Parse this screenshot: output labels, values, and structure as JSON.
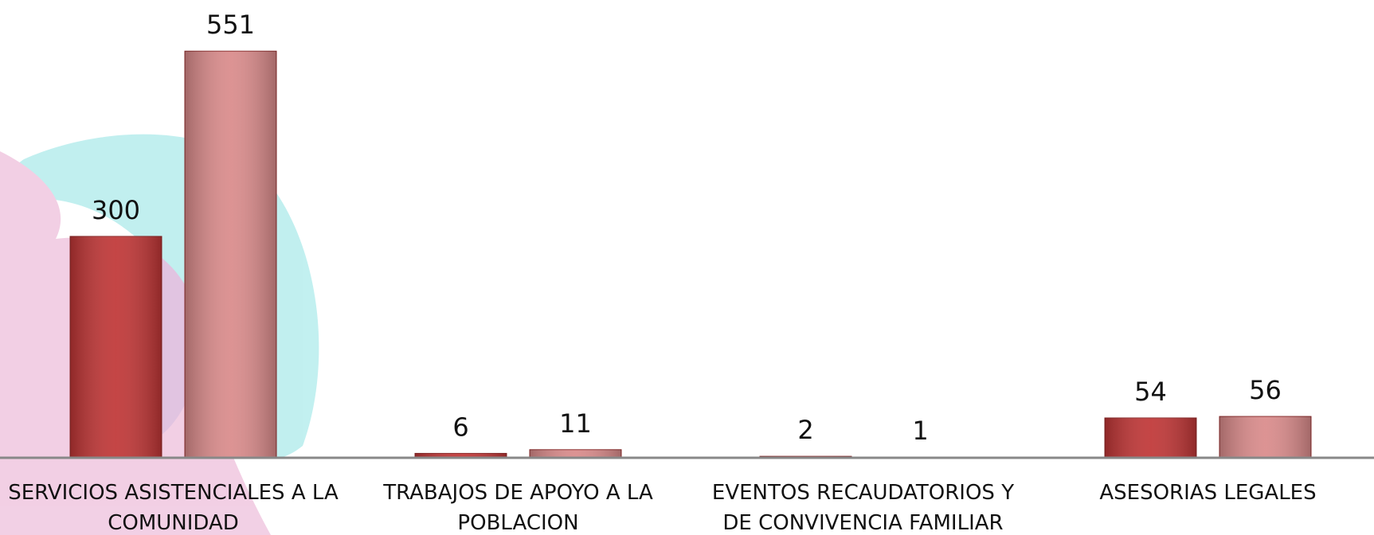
{
  "chart_data": {
    "type": "bar",
    "categories": [
      "SERVICIOS ASISTENCIALES A LA COMUNIDAD",
      "TRABAJOS DE APOYO A LA POBLACION",
      "EVENTOS RECAUDATORIOS  Y DE CONVIVENCIA FAMILIAR",
      "ASESORIAS LEGALES"
    ],
    "series": [
      {
        "color": "#bf3535",
        "values": [
          300,
          6,
          2,
          54
        ]
      },
      {
        "color": "#d98a8a",
        "values": [
          551,
          11,
          1,
          56
        ]
      }
    ]
  }
}
